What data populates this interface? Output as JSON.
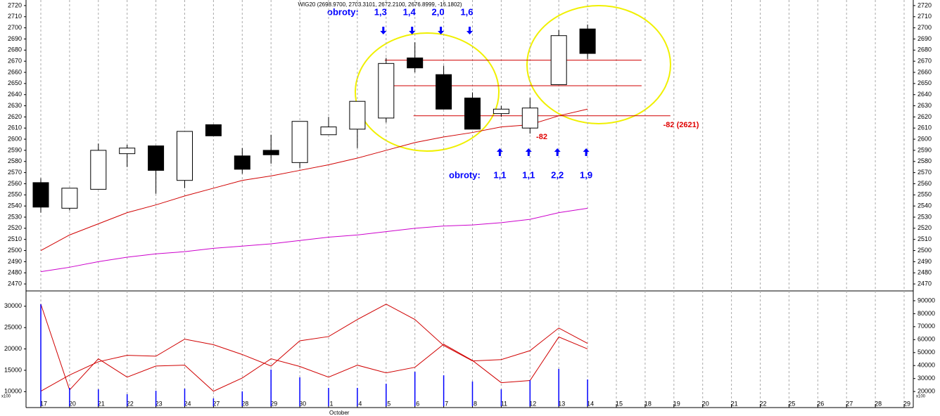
{
  "chart_data": [
    {
      "type": "candlestick",
      "title": "WIG20 (2698.9700, 2703.3101, 2672.2100, 2676.8999, -16.1802)",
      "categories": [
        "17",
        "20",
        "21",
        "22",
        "23",
        "24",
        "27",
        "28",
        "29",
        "30",
        "1",
        "4",
        "5",
        "6",
        "7",
        "8",
        "11",
        "12",
        "13",
        "14",
        "15",
        "18",
        "19",
        "20",
        "21",
        "22",
        "25",
        "26",
        "27",
        "28",
        "29"
      ],
      "month_label": "October",
      "open": [
        2561,
        2538,
        2555,
        2587,
        2594,
        2563,
        2613,
        2585,
        2590,
        2579,
        2604,
        2609,
        2619,
        2673,
        2658,
        2637,
        2623,
        2610,
        2649,
        2699,
        null,
        null,
        null,
        null,
        null,
        null,
        null,
        null,
        null,
        null,
        null
      ],
      "high": [
        2565,
        2556,
        2596,
        2595,
        2594,
        2607,
        2613,
        2592,
        2604,
        2616,
        2620,
        2634,
        2673,
        2687,
        2666,
        2642,
        2630,
        2637,
        2698,
        2703,
        null,
        null,
        null,
        null,
        null,
        null,
        null,
        null,
        null,
        null,
        null
      ],
      "low": [
        2534,
        2536,
        2555,
        2575,
        2551,
        2556,
        2603,
        2569,
        2578,
        2574,
        2604,
        2592,
        2615,
        2660,
        2627,
        2609,
        2620,
        2605,
        2649,
        2672,
        null,
        null,
        null,
        null,
        null,
        null,
        null,
        null,
        null,
        null,
        null
      ],
      "close": [
        2539,
        2556,
        2590,
        2592,
        2572,
        2607,
        2603,
        2573,
        2586,
        2616,
        2611,
        2634,
        2668,
        2664,
        2627,
        2609,
        2627,
        2628,
        2693,
        2677,
        null,
        null,
        null,
        null,
        null,
        null,
        null,
        null,
        null,
        null,
        null
      ],
      "up_color": "#ffffff",
      "down_color": "#000000",
      "lines": [
        {
          "color": "#d00000",
          "values": [
            2500,
            2514,
            2524,
            2534,
            2541,
            2549,
            2556,
            2563,
            2567,
            2572,
            2577,
            2583,
            2590,
            2597,
            2602,
            2606,
            2611,
            2613,
            2621,
            2627,
            null,
            null,
            null,
            null,
            null,
            null,
            null,
            null,
            null,
            null,
            null
          ]
        },
        {
          "color": "#cc00cc",
          "values": [
            2481,
            2485,
            2490,
            2494,
            2497,
            2499,
            2502,
            2504,
            2506,
            2509,
            2512,
            2514,
            2517,
            2520,
            2522,
            2523,
            2525,
            2528,
            2534,
            2538,
            null,
            null,
            null,
            null,
            null,
            null,
            null,
            null,
            null,
            null,
            null
          ]
        }
      ],
      "hlines": [
        {
          "value": 2671,
          "color": "#d00000"
        },
        {
          "value": 2648,
          "color": "#d00000"
        },
        {
          "value": 2621,
          "color": "#d00000"
        }
      ],
      "ylim": [
        2465,
        2725
      ],
      "yticks": [
        2470,
        2480,
        2490,
        2500,
        2510,
        2520,
        2530,
        2540,
        2550,
        2560,
        2570,
        2580,
        2590,
        2600,
        2610,
        2620,
        2630,
        2640,
        2650,
        2660,
        2670,
        2680,
        2690,
        2700,
        2710,
        2720
      ],
      "annotations": {
        "top_label": "obroty:",
        "top_values": [
          "1,3",
          "1,4",
          "2,0",
          "1,6"
        ],
        "bottom_label": "obroty:",
        "bottom_values": [
          "1,1",
          "1,1",
          "2,2",
          "1,9"
        ],
        "change_label": "-82",
        "level_label": "-82 (2621)"
      }
    },
    {
      "type": "line",
      "series": [
        {
          "color": "#d00000",
          "values": [
            30500,
            10400,
            17700,
            13400,
            16000,
            16200,
            10100,
            13200,
            17700,
            15900,
            13400,
            16200,
            14400,
            15700,
            21100,
            17300,
            12100,
            12600,
            22800,
            20000,
            null,
            null,
            null,
            null,
            null,
            null,
            null,
            null,
            null,
            null,
            null
          ]
        },
        {
          "color": "#d00000",
          "values": [
            10100,
            13900,
            17000,
            18500,
            18300,
            22300,
            21000,
            18700,
            16000,
            21900,
            22900,
            26900,
            30500,
            26900,
            20800,
            17200,
            17500,
            19600,
            24900,
            21300,
            null,
            null,
            null,
            null,
            null,
            null,
            null,
            null,
            null,
            null,
            null
          ]
        },
        {
          "type": "bar",
          "axis": "y2",
          "color": "#0000ff",
          "values": [
            87300,
            22800,
            21700,
            17900,
            20600,
            22200,
            14700,
            20100,
            36900,
            30900,
            22800,
            22800,
            26000,
            35200,
            32500,
            27700,
            21700,
            28700,
            37400,
            29300,
            null,
            null,
            null,
            null,
            null,
            null,
            null,
            null,
            null,
            null,
            null
          ]
        }
      ],
      "ylim": [
        6600,
        32600
      ],
      "yticks": [
        10000,
        15000,
        20000,
        25000,
        30000
      ],
      "y2lim": [
        8700,
        94300
      ],
      "y2ticks": [
        20000,
        30000,
        40000,
        50000,
        60000,
        70000,
        80000,
        90000
      ],
      "unit_label": "x100"
    }
  ]
}
